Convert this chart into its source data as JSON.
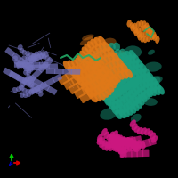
{
  "background_color": "#000000",
  "figsize": [
    2.0,
    2.0
  ],
  "dpi": 100,
  "teal_color": "#1a9e80",
  "orange_color": "#e07818",
  "purple_color": "#7070b8",
  "magenta_color": "#cc1880",
  "green_loop_color": "#22aa66",
  "axis_x_color": "#dd0000",
  "axis_y_color": "#00cc00",
  "axis_z_color": "#0000bb"
}
